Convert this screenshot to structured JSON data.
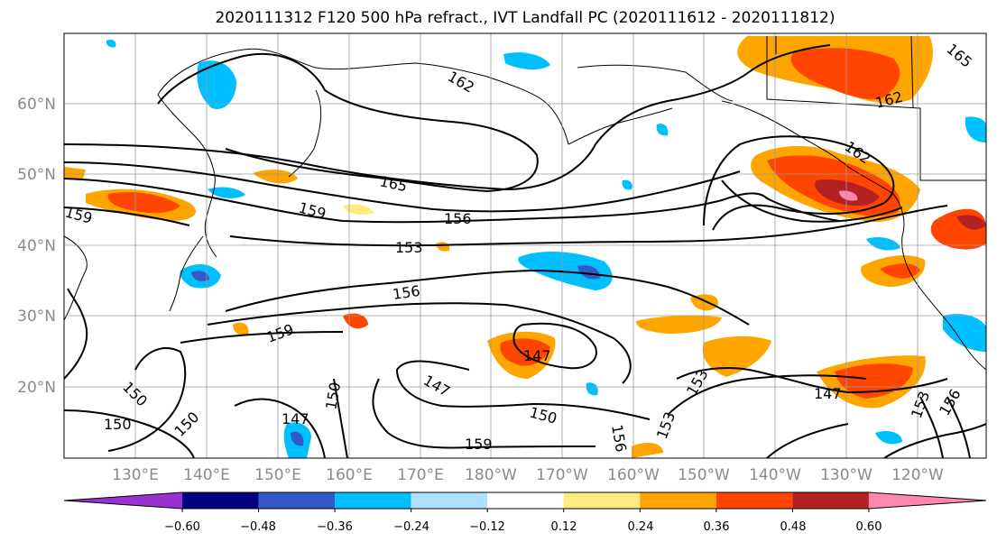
{
  "title": "2020111312 F120 500 hPa refract., IVT Landfall PC (2020111612 - 2020111812)",
  "map": {
    "lon_ticks": [
      "130°E",
      "140°E",
      "150°E",
      "160°E",
      "170°E",
      "180°W",
      "170°W",
      "160°W",
      "150°W",
      "140°W",
      "130°W",
      "120°W"
    ],
    "lat_ticks": [
      "60°N",
      "50°N",
      "40°N",
      "30°N",
      "20°N"
    ],
    "contour_labels": [
      "162",
      "165",
      "159",
      "156",
      "153",
      "156",
      "159",
      "147",
      "147",
      "150",
      "150",
      "147",
      "150",
      "159",
      "153",
      "153",
      "147",
      "162",
      "162",
      "165",
      "159",
      "150",
      "156",
      "153",
      "156",
      "150"
    ]
  },
  "colorbar": {
    "ticks": [
      "−0.60",
      "−0.48",
      "−0.36",
      "−0.24",
      "−0.12",
      "0.12",
      "0.24",
      "0.36",
      "0.48",
      "0.60"
    ],
    "colors": [
      "#9b30d0",
      "#000080",
      "#3558c8",
      "#00bfff",
      "#b0e0ff",
      "#ffffff",
      "#ffec80",
      "#ffa500",
      "#ff4500",
      "#b22222",
      "#ff88b0"
    ]
  }
}
